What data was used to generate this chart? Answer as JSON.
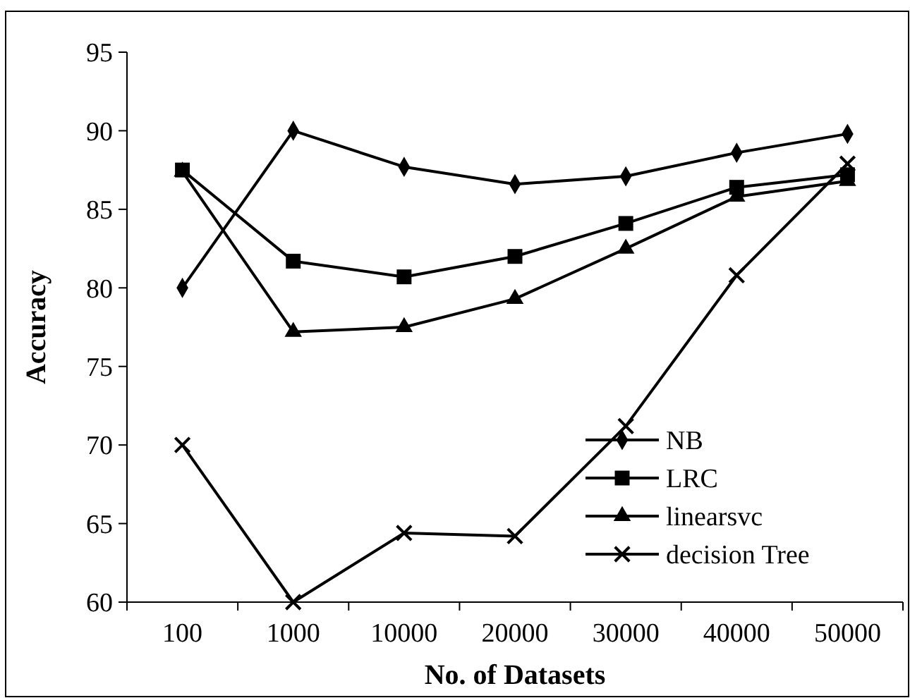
{
  "chart_data": {
    "type": "line",
    "xlabel": "No. of Datasets",
    "ylabel": "Accuracy",
    "categories": [
      "100",
      "1000",
      "10000",
      "20000",
      "30000",
      "40000",
      "50000"
    ],
    "series": [
      {
        "name": "NB",
        "color": "#000000",
        "marker": "diamond",
        "values": [
          80,
          90,
          87.7,
          86.6,
          87.1,
          88.6,
          89.8
        ]
      },
      {
        "name": "LRC",
        "color": "#000000",
        "marker": "square",
        "values": [
          87.5,
          81.7,
          80.7,
          82.0,
          84.1,
          86.4,
          87.2
        ]
      },
      {
        "name": "linearsvc",
        "color": "#000000",
        "marker": "triangle",
        "values": [
          87.4,
          77.2,
          77.5,
          79.3,
          82.5,
          85.8,
          86.8
        ]
      },
      {
        "name": "decision Tree",
        "color": "#000000",
        "marker": "cross",
        "values": [
          70,
          60,
          64.4,
          64.2,
          71.2,
          80.8,
          87.9
        ]
      }
    ],
    "ylim": [
      60,
      95
    ],
    "yticks": [
      60,
      65,
      70,
      75,
      80,
      85,
      90,
      95
    ],
    "grid": false,
    "legend": "bottom right",
    "line_style": "solid"
  }
}
